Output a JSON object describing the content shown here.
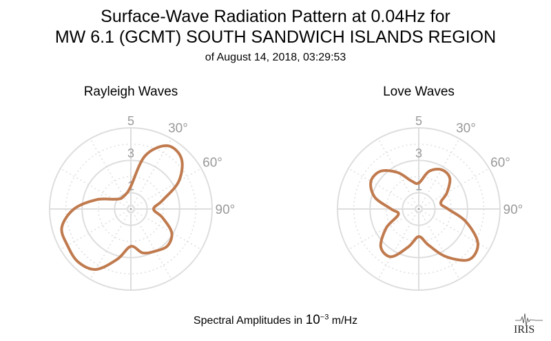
{
  "title": {
    "line1": "Surface-Wave Radiation Pattern at 0.04Hz for",
    "line2": "MW 6.1 (GCMT) SOUTH SANDWICH ISLANDS REGION",
    "subtitle": "of August 14, 2018, 03:29:53"
  },
  "footer": {
    "prefix": "Spectral Amplitudes in ",
    "base": "10",
    "exponent": "−3",
    "suffix": " m/Hz"
  },
  "logo": {
    "text": "IRIS"
  },
  "colors": {
    "pattern": "#c07a4e",
    "grid": "#dddddd",
    "label": "#999999"
  },
  "chart_data": [
    {
      "type": "polar-line",
      "title": "Rayleigh Waves",
      "radial_max": 5,
      "radial_ticks": [
        1,
        3,
        5
      ],
      "angle_labels": [
        "30°",
        "60°",
        "90°"
      ],
      "angular_grid_step_deg": 30,
      "series": [
        {
          "color": "#c07a4e",
          "theta_deg": [
            0,
            15,
            30,
            45,
            60,
            75,
            90,
            105,
            120,
            135,
            150,
            165,
            180,
            195,
            210,
            225,
            240,
            255,
            270,
            285,
            300,
            315,
            330,
            345
          ],
          "r": [
            1.4,
            3.4,
            4.5,
            4.4,
            3.4,
            2.0,
            1.4,
            2.0,
            2.9,
            3.2,
            3.0,
            2.8,
            2.3,
            3.2,
            4.3,
            4.6,
            4.5,
            4.4,
            3.5,
            2.2,
            1.2,
            0.9,
            0.9,
            1.0
          ]
        }
      ]
    },
    {
      "type": "polar-line",
      "title": "Love Waves",
      "radial_max": 5,
      "radial_ticks": [
        1,
        3,
        5
      ],
      "angle_labels": [
        "30°",
        "60°",
        "90°"
      ],
      "angular_grid_step_deg": 30,
      "series": [
        {
          "color": "#c07a4e",
          "theta_deg": [
            0,
            15,
            30,
            45,
            60,
            75,
            90,
            105,
            120,
            135,
            150,
            165,
            180,
            195,
            210,
            225,
            240,
            255,
            270,
            285,
            300,
            315,
            330,
            345
          ],
          "r": [
            1.6,
            2.4,
            2.8,
            2.7,
            2.0,
            1.4,
            1.8,
            3.0,
            4.2,
            4.4,
            3.4,
            2.3,
            1.7,
            2.4,
            3.4,
            3.3,
            2.3,
            1.3,
            1.7,
            2.8,
            3.4,
            3.3,
            2.6,
            1.8
          ]
        }
      ]
    }
  ]
}
